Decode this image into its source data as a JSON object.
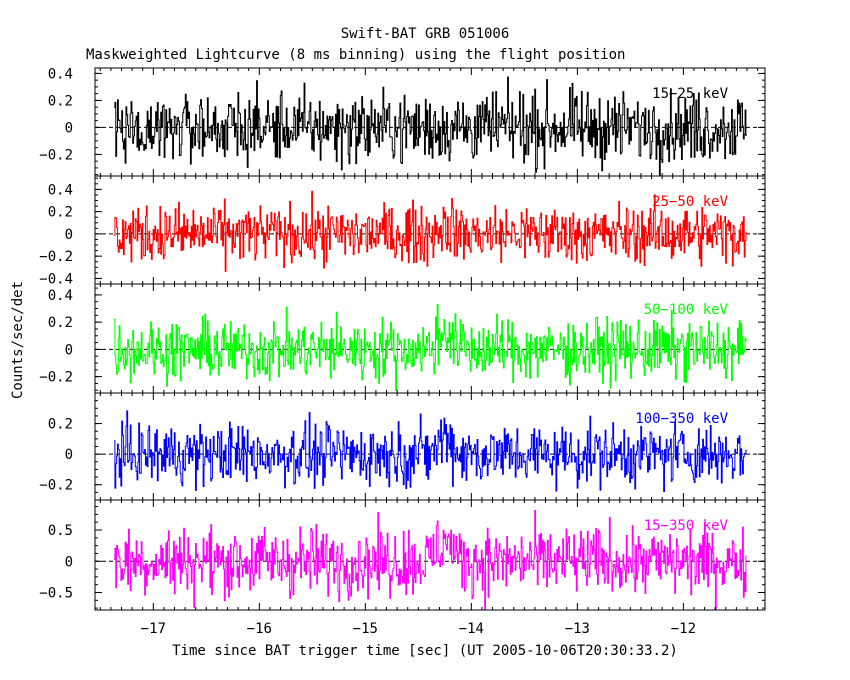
{
  "chart_data": {
    "type": "line",
    "title": "Swift-BAT GRB 051006",
    "subtitle": "Maskweighted Lightcurve (8 ms binning) using the flight position",
    "xlabel": "Time since BAT trigger time [sec] (UT 2005-10-06T20:30:33.2)",
    "ylabel": "Counts/sec/det",
    "xlim": [
      -17.55,
      -11.23
    ],
    "x_ticks": [
      -17,
      -16,
      -15,
      -14,
      -13,
      -12
    ],
    "x_tick_labels": [
      "−17",
      "−16",
      "−15",
      "−14",
      "−13",
      "−12"
    ],
    "bin_width_sec": 0.008,
    "x_start": -17.37,
    "x_end": -11.4,
    "panels": [
      {
        "name": "15−25 keV",
        "color": "#000000",
        "ylim": [
          -0.36,
          0.44
        ],
        "y_ticks": [
          -0.2,
          0,
          0.2,
          0.4
        ],
        "y_tick_labels": [
          "−0.2",
          "0",
          "0.2",
          "0.4"
        ],
        "noise_amplitude": 0.13,
        "peak_amplitude": 0.0
      },
      {
        "name": "25−50 keV",
        "color": "#ff0000",
        "ylim": [
          -0.45,
          0.52
        ],
        "y_ticks": [
          -0.4,
          -0.2,
          0,
          0.2,
          0.4
        ],
        "y_tick_labels": [
          "−0.4",
          "−0.2",
          "0",
          "0.2",
          "0.4"
        ],
        "noise_amplitude": 0.13,
        "peak_amplitude": 0.08
      },
      {
        "name": "50−100 keV",
        "color": "#00ff00",
        "ylim": [
          -0.32,
          0.48
        ],
        "y_ticks": [
          -0.2,
          0,
          0.2,
          0.4
        ],
        "y_tick_labels": [
          "−0.2",
          "0",
          "0.2",
          "0.4"
        ],
        "noise_amplitude": 0.11,
        "peak_amplitude": 0.15
      },
      {
        "name": "100−350 keV",
        "color": "#0000ff",
        "ylim": [
          -0.3,
          0.4
        ],
        "y_ticks": [
          -0.2,
          0,
          0.2
        ],
        "y_tick_labels": [
          "−0.2",
          "0",
          "0.2"
        ],
        "noise_amplitude": 0.1,
        "peak_amplitude": 0.12
      },
      {
        "name": "15−350 keV",
        "color": "#ff00ff",
        "ylim": [
          -0.78,
          0.98
        ],
        "y_ticks": [
          -0.5,
          0,
          0.5
        ],
        "y_tick_labels": [
          "−0.5",
          "0",
          "0.5"
        ],
        "noise_amplitude": 0.27,
        "peak_amplitude": 0.35
      }
    ],
    "burst_peak_time": -14.25,
    "grid": false,
    "legend": "none"
  }
}
